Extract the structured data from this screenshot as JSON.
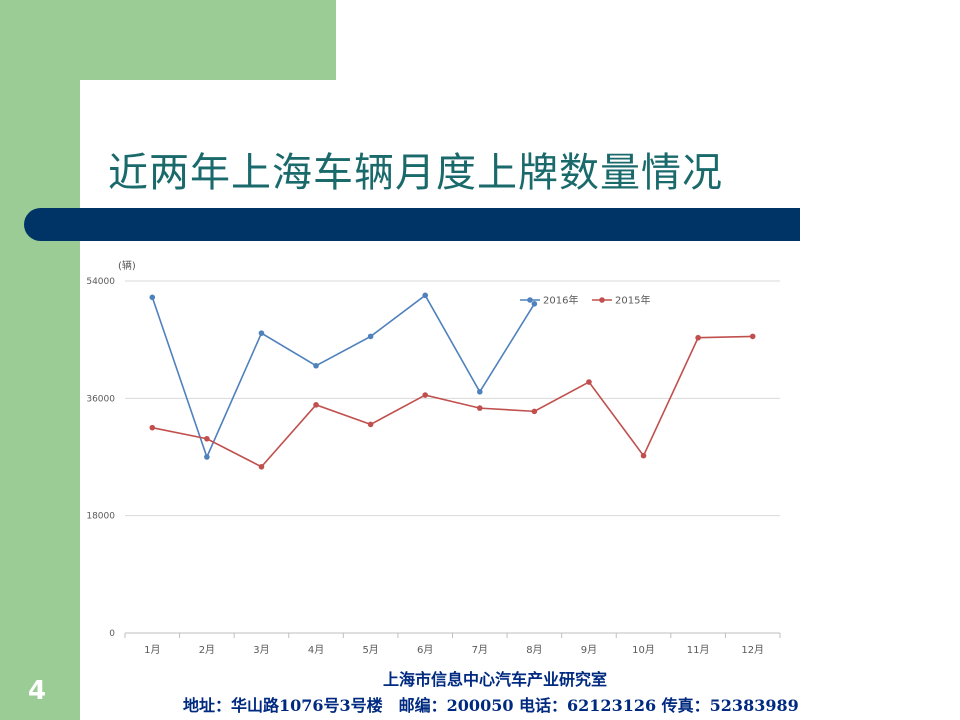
{
  "slide": {
    "title": "近两年上海车辆月度上牌数量情况",
    "page_number": "4",
    "footer_org": "上海市信息中心汽车产业研究室",
    "footer_contact": "地址：华山路1076号3号楼　邮编：200050 电话：62123126 传真：52383989"
  },
  "colors": {
    "background_green": "#9bcc96",
    "title_color": "#1a6a6c",
    "bar_navy": "#003366",
    "series_2016": "#4f81bd",
    "series_2015": "#c0504d"
  },
  "chart_data": {
    "type": "line",
    "unit_label": "(辆)",
    "categories": [
      "1月",
      "2月",
      "3月",
      "4月",
      "5月",
      "6月",
      "7月",
      "8月",
      "9月",
      "10月",
      "11月",
      "12月"
    ],
    "y_ticks": [
      "0",
      "18000",
      "36000",
      "54000"
    ],
    "ylim": [
      0,
      54000
    ],
    "grid": true,
    "legend_position": "top-right",
    "series": [
      {
        "name": "2016年",
        "values": [
          51500,
          27000,
          46000,
          41000,
          45500,
          51800,
          37000,
          50500,
          null,
          null,
          null,
          null
        ]
      },
      {
        "name": "2015年",
        "values": [
          31500,
          29800,
          25500,
          35000,
          32000,
          36500,
          34500,
          34000,
          38500,
          27200,
          45300,
          45500
        ]
      }
    ]
  }
}
